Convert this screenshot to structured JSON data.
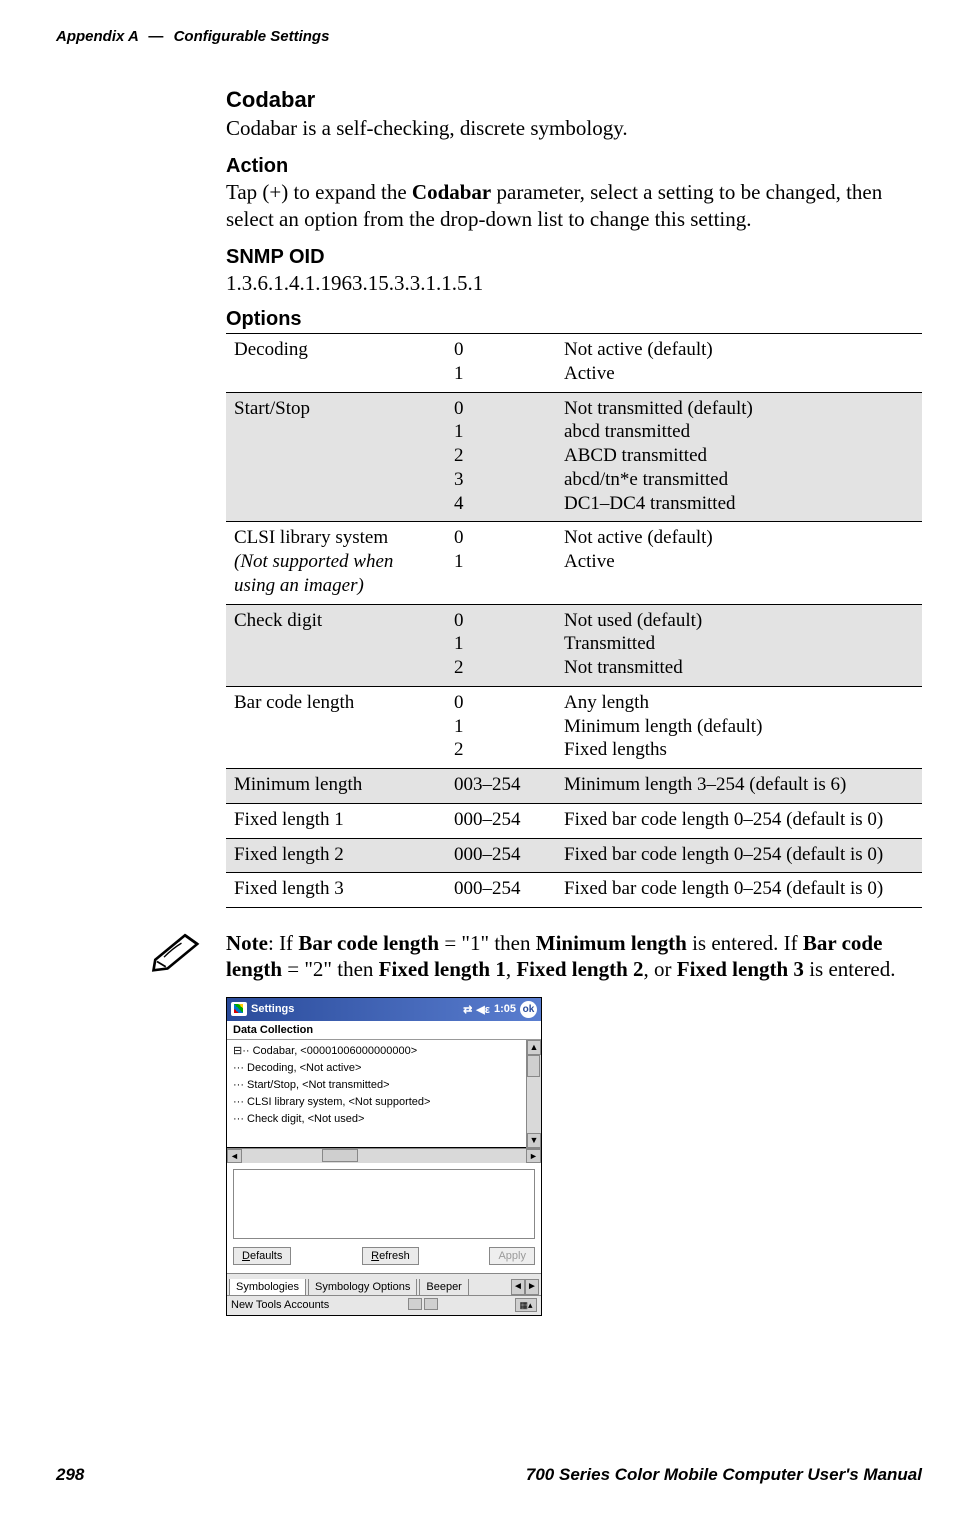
{
  "header": {
    "left_label": "Appendix",
    "left_id": "A",
    "dash": "—",
    "right": "Configurable Settings"
  },
  "sections": {
    "codabar": {
      "heading": "Codabar",
      "body": "Codabar is a self-checking, discrete symbology."
    },
    "action": {
      "heading": "Action",
      "body_parts": [
        "Tap (+) to expand the ",
        "Codabar",
        " parameter, select a setting to be changed, then select an option from the drop-down list to change this setting."
      ]
    },
    "snmp": {
      "heading": "SNMP OID",
      "oid": "1.3.6.1.4.1.1963.15.3.3.1.1.5.1"
    },
    "options_heading": "Options"
  },
  "options_rows": [
    {
      "shaded": false,
      "name": "Decoding",
      "name_extra": "",
      "values": "0\n1",
      "desc": "Not active (default)\nActive"
    },
    {
      "shaded": true,
      "name": "Start/Stop",
      "name_extra": "",
      "values": "0\n1\n2\n3\n4",
      "desc": "Not transmitted (default)\nabcd transmitted\nABCD transmitted\nabcd/tn*e transmitted\nDC1–DC4 transmitted"
    },
    {
      "shaded": false,
      "name": "CLSI library system",
      "name_extra": "(Not supported when using an imager)",
      "values": "0\n1",
      "desc": "Not active (default)\nActive"
    },
    {
      "shaded": true,
      "name": "Check digit",
      "name_extra": "",
      "values": "0\n1\n2",
      "desc": "Not used (default)\nTransmitted\nNot transmitted"
    },
    {
      "shaded": false,
      "name": "Bar code length",
      "name_extra": "",
      "values": "0\n1\n2",
      "desc": "Any length\nMinimum length (default)\nFixed lengths"
    },
    {
      "shaded": true,
      "name": "Minimum length",
      "name_extra": "",
      "values": "003–254",
      "desc": "Minimum length 3–254 (default is 6)"
    },
    {
      "shaded": false,
      "name": "Fixed length 1",
      "name_extra": "",
      "values": "000–254",
      "desc": "Fixed bar code length 0–254 (default is 0)"
    },
    {
      "shaded": true,
      "name": "Fixed length 2",
      "name_extra": "",
      "values": "000–254",
      "desc": "Fixed bar code length 0–254 (default is 0)"
    },
    {
      "shaded": false,
      "name": "Fixed length 3",
      "name_extra": "",
      "values": "000–254",
      "desc": "Fixed bar code length 0–254 (default is 0)"
    }
  ],
  "note": {
    "parts": [
      "Note",
      ": If ",
      "Bar code length",
      " = \"1\" then ",
      "Minimum length",
      " is entered. If ",
      "Bar code length",
      " = \"2\" then ",
      "Fixed length 1",
      ", ",
      "Fixed length 2",
      ", or ",
      "Fixed length 3",
      " is entered."
    ]
  },
  "pda": {
    "title": "Settings",
    "clock": "1:05",
    "ok": "ok",
    "subhead": "Data Collection",
    "tree": [
      "⊟·· Codabar, <00001006000000000>",
      "     ··· Decoding, <Not active>",
      "     ··· Start/Stop, <Not transmitted>",
      "     ··· CLSI library system, <Not supported>",
      "     ··· Check digit, <Not used>"
    ],
    "buttons": {
      "defaults": "Defaults",
      "refresh": "Refresh",
      "apply": "Apply"
    },
    "tabs": {
      "t1": "Symbologies",
      "t2": "Symbology Options",
      "t3": "Beeper"
    },
    "bottom": "New  Tools  Accounts"
  },
  "footer": {
    "page": "298",
    "right": "700 Series Color Mobile Computer User's Manual"
  },
  "colors": {
    "shade": "#e3e3e3",
    "titlebar_start": "#2a4b9b",
    "titlebar_end": "#5a7ed0"
  }
}
